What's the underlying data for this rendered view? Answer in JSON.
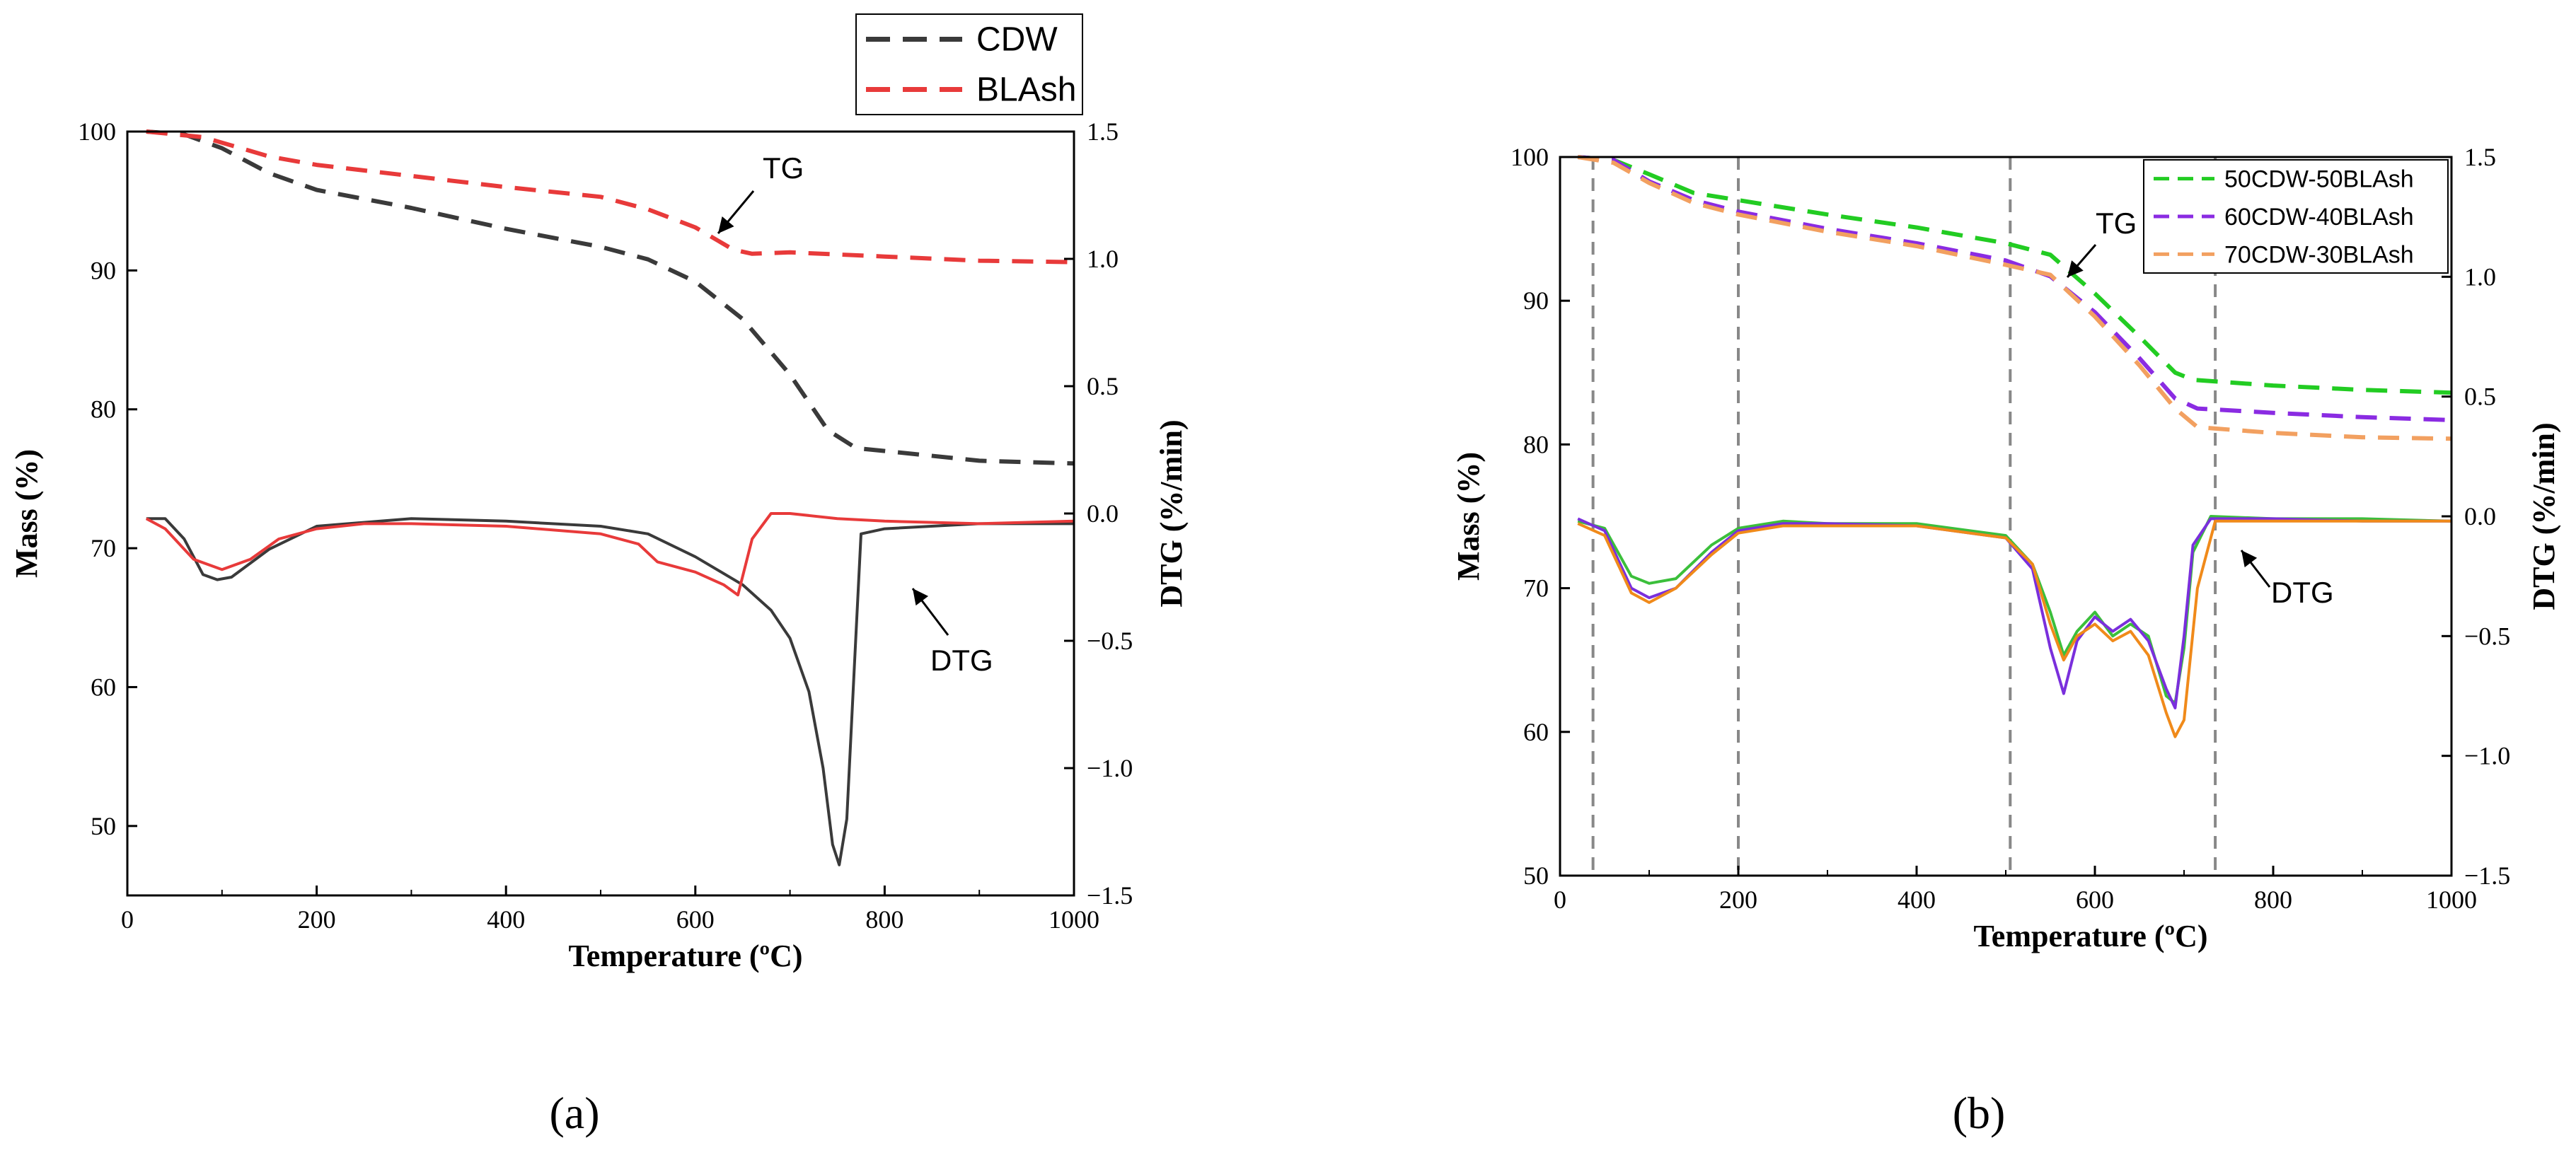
{
  "colors": {
    "cdw": "#3a3a3a",
    "blash": "#e83a3a",
    "mix50": "#22cc22",
    "mix60": "#8a2be2",
    "mix70": "#f2a060",
    "mix70_dtg": "#f08a1a",
    "mix60_dtg": "#7a2fdc",
    "mix50_dtg": "#3bbf3b",
    "vline": "#888888"
  },
  "chart_data": [
    {
      "type": "line",
      "panel_label": "(a)",
      "xlabel": "Temperature (ºC)",
      "ylabel": "Mass (%)",
      "y2label": "DTG (%/min)",
      "xlim": [
        0,
        1000
      ],
      "ylim": [
        45,
        100
      ],
      "y2lim": [
        -1.5,
        1.5
      ],
      "xticks": [
        "0",
        "200",
        "400",
        "600",
        "800",
        "1000"
      ],
      "yticks": [
        "50",
        "60",
        "70",
        "80",
        "90",
        "100"
      ],
      "y2ticks": [
        "1.5",
        "1.0",
        "0.5",
        "0.0",
        "−0.5",
        "−1.0",
        "−1.5"
      ],
      "annotations": [
        {
          "text": "TG"
        },
        {
          "text": "DTG"
        }
      ],
      "legend": [
        "CDW",
        "BLAsh"
      ],
      "series": [
        {
          "name": "CDW",
          "kind": "TG",
          "axis": "left",
          "x": [
            20,
            60,
            100,
            150,
            200,
            300,
            400,
            500,
            550,
            600,
            650,
            700,
            740,
            770,
            800,
            900,
            1000
          ],
          "y": [
            100,
            99.8,
            98.8,
            97,
            95.8,
            94.5,
            93,
            91.7,
            90.8,
            89.2,
            86.5,
            82.5,
            78.5,
            77.2,
            77,
            76.3,
            76.1
          ]
        },
        {
          "name": "BLAsh",
          "kind": "TG",
          "axis": "left",
          "x": [
            20,
            80,
            100,
            150,
            200,
            300,
            400,
            500,
            550,
            600,
            640,
            660,
            700,
            800,
            900,
            1000
          ],
          "y": [
            100,
            99.6,
            99.2,
            98.2,
            97.6,
            96.8,
            96,
            95.3,
            94.4,
            93.1,
            91.5,
            91.2,
            91.3,
            91,
            90.7,
            90.6
          ]
        },
        {
          "name": "CDW",
          "kind": "DTG",
          "axis": "right",
          "x": [
            20,
            40,
            60,
            80,
            95,
            110,
            150,
            200,
            300,
            400,
            500,
            550,
            600,
            650,
            680,
            700,
            720,
            735,
            745,
            752,
            760,
            768,
            775,
            800,
            900,
            1000
          ],
          "y": [
            -0.02,
            -0.02,
            -0.1,
            -0.24,
            -0.26,
            -0.25,
            -0.14,
            -0.05,
            -0.02,
            -0.03,
            -0.05,
            -0.08,
            -0.17,
            -0.28,
            -0.38,
            -0.49,
            -0.7,
            -1.0,
            -1.3,
            -1.38,
            -1.2,
            -0.6,
            -0.08,
            -0.06,
            -0.04,
            -0.04
          ]
        },
        {
          "name": "BLAsh",
          "kind": "DTG",
          "axis": "right",
          "x": [
            20,
            40,
            70,
            100,
            130,
            160,
            200,
            250,
            300,
            400,
            500,
            540,
            560,
            600,
            630,
            645,
            660,
            680,
            700,
            750,
            800,
            900,
            1000
          ],
          "y": [
            -0.02,
            -0.06,
            -0.18,
            -0.22,
            -0.18,
            -0.1,
            -0.06,
            -0.04,
            -0.04,
            -0.05,
            -0.08,
            -0.12,
            -0.19,
            -0.23,
            -0.28,
            -0.32,
            -0.1,
            0.0,
            0.0,
            -0.02,
            -0.03,
            -0.04,
            -0.03
          ]
        }
      ]
    },
    {
      "type": "line",
      "panel_label": "(b)",
      "xlabel": "Temperature (ºC)",
      "ylabel": "Mass (%)",
      "y2label": "DTG (%/min)",
      "xlim": [
        0,
        1000
      ],
      "ylim": [
        50,
        100
      ],
      "y2lim": [
        -1.5,
        1.5
      ],
      "xticks": [
        "0",
        "200",
        "400",
        "600",
        "800",
        "1000"
      ],
      "yticks": [
        "50",
        "60",
        "70",
        "80",
        "90",
        "100"
      ],
      "y2ticks": [
        "1.5",
        "1.0",
        "0.5",
        "0.0",
        "−0.5",
        "−1.0",
        "−1.5"
      ],
      "vlines": [
        37,
        200,
        505,
        735
      ],
      "annotations": [
        {
          "text": "TG"
        },
        {
          "text": "DTG"
        }
      ],
      "legend": [
        "50CDW-50BLAsh",
        "60CDW-40BLAsh",
        "70CDW-30BLAsh"
      ],
      "series": [
        {
          "name": "50CDW-50BLAsh",
          "kind": "TG",
          "axis": "left",
          "x": [
            20,
            60,
            100,
            150,
            200,
            300,
            400,
            500,
            550,
            600,
            650,
            690,
            710,
            800,
            900,
            1000
          ],
          "y": [
            100,
            99.8,
            98.8,
            97.5,
            97,
            96,
            95.1,
            94,
            93.2,
            90.5,
            87.5,
            85,
            84.5,
            84.1,
            83.8,
            83.6
          ]
        },
        {
          "name": "60CDW-40BLAsh",
          "kind": "TG",
          "axis": "left",
          "x": [
            20,
            60,
            100,
            150,
            200,
            300,
            400,
            500,
            550,
            600,
            650,
            690,
            715,
            800,
            900,
            1000
          ],
          "y": [
            100,
            99.8,
            98.3,
            97,
            96.2,
            95,
            94,
            92.8,
            91.7,
            89.2,
            86,
            83.2,
            82.5,
            82.2,
            81.9,
            81.7
          ]
        },
        {
          "name": "70CDW-30BLAsh",
          "kind": "TG",
          "axis": "left",
          "x": [
            20,
            60,
            100,
            150,
            200,
            300,
            400,
            500,
            550,
            600,
            650,
            690,
            715,
            800,
            900,
            1000
          ],
          "y": [
            100,
            99.6,
            98.2,
            96.8,
            96,
            94.8,
            93.8,
            92.5,
            91.8,
            88.9,
            85.5,
            82.5,
            81.2,
            80.8,
            80.5,
            80.4
          ]
        },
        {
          "name": "50CDW-50BLAsh",
          "kind": "DTG",
          "axis": "right",
          "x": [
            20,
            50,
            80,
            100,
            130,
            170,
            200,
            250,
            300,
            400,
            500,
            530,
            550,
            565,
            580,
            600,
            620,
            640,
            660,
            680,
            690,
            700,
            710,
            730,
            800,
            900,
            1000
          ],
          "y": [
            -0.02,
            -0.05,
            -0.25,
            -0.28,
            -0.26,
            -0.12,
            -0.05,
            -0.02,
            -0.03,
            -0.03,
            -0.08,
            -0.2,
            -0.4,
            -0.58,
            -0.48,
            -0.4,
            -0.5,
            -0.45,
            -0.5,
            -0.75,
            -0.78,
            -0.55,
            -0.15,
            0.0,
            -0.01,
            -0.01,
            -0.02
          ]
        },
        {
          "name": "60CDW-40BLAsh",
          "kind": "DTG",
          "axis": "right",
          "x": [
            20,
            50,
            80,
            100,
            130,
            170,
            200,
            250,
            300,
            400,
            500,
            530,
            550,
            565,
            580,
            600,
            620,
            640,
            660,
            680,
            690,
            700,
            710,
            730,
            800,
            900,
            1000
          ],
          "y": [
            -0.01,
            -0.06,
            -0.3,
            -0.34,
            -0.3,
            -0.15,
            -0.06,
            -0.03,
            -0.03,
            -0.04,
            -0.09,
            -0.22,
            -0.55,
            -0.74,
            -0.52,
            -0.42,
            -0.48,
            -0.43,
            -0.52,
            -0.72,
            -0.8,
            -0.5,
            -0.12,
            -0.01,
            -0.01,
            -0.02,
            -0.02
          ]
        },
        {
          "name": "70CDW-30BLAsh",
          "kind": "DTG",
          "axis": "right",
          "x": [
            20,
            50,
            80,
            100,
            130,
            170,
            200,
            250,
            300,
            400,
            500,
            530,
            550,
            565,
            580,
            600,
            620,
            640,
            660,
            680,
            690,
            700,
            715,
            735,
            800,
            900,
            1000
          ],
          "y": [
            -0.03,
            -0.08,
            -0.32,
            -0.36,
            -0.3,
            -0.16,
            -0.07,
            -0.04,
            -0.04,
            -0.04,
            -0.09,
            -0.2,
            -0.45,
            -0.6,
            -0.5,
            -0.45,
            -0.52,
            -0.48,
            -0.58,
            -0.82,
            -0.92,
            -0.85,
            -0.3,
            -0.02,
            -0.02,
            -0.02,
            -0.02
          ]
        }
      ]
    }
  ]
}
